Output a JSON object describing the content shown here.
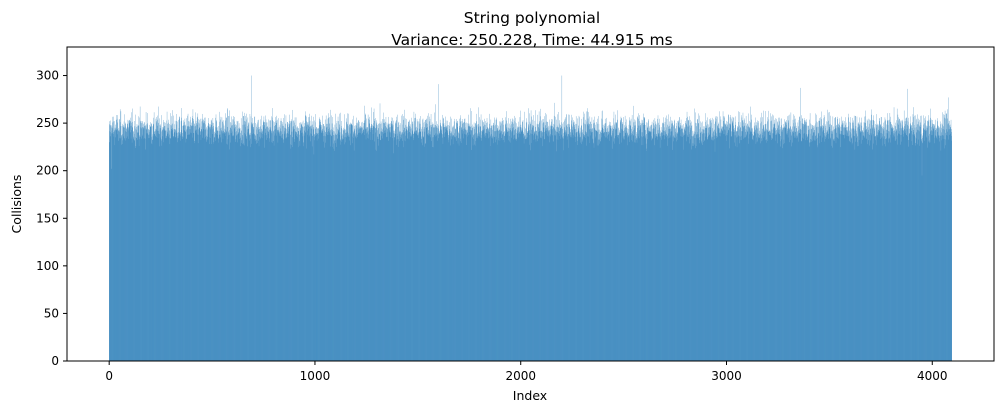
{
  "chart_data": {
    "type": "bar",
    "title": "String polynomial",
    "subtitle": "Variance: 250.228, Time: 44.915 ms",
    "xlabel": "Index",
    "ylabel": "Collisions",
    "x_range": [
      0,
      4095
    ],
    "xlim": [
      -205,
      4300
    ],
    "ylim": [
      0,
      330
    ],
    "xticks": [
      0,
      1000,
      2000,
      3000,
      4000
    ],
    "xtick_labels": [
      "0",
      "1000",
      "2000",
      "3000",
      "4000"
    ],
    "yticks": [
      0,
      50,
      100,
      150,
      200,
      250,
      300
    ],
    "ytick_labels": [
      "0",
      "50",
      "100",
      "150",
      "200",
      "250",
      "300"
    ],
    "bar_color": "#1f77b4",
    "grid": false,
    "value_summary": {
      "typical": 244,
      "min": 195,
      "max": 300
    },
    "notable_bars": [
      {
        "index": 0,
        "value": 230
      },
      {
        "index": 10,
        "value": 202
      },
      {
        "index": 690,
        "value": 300
      },
      {
        "index": 1600,
        "value": 291
      },
      {
        "index": 2200,
        "value": 300
      },
      {
        "index": 3360,
        "value": 287
      },
      {
        "index": 3880,
        "value": 286
      },
      {
        "index": 3950,
        "value": 195
      },
      {
        "index": 4080,
        "value": 277
      }
    ]
  }
}
